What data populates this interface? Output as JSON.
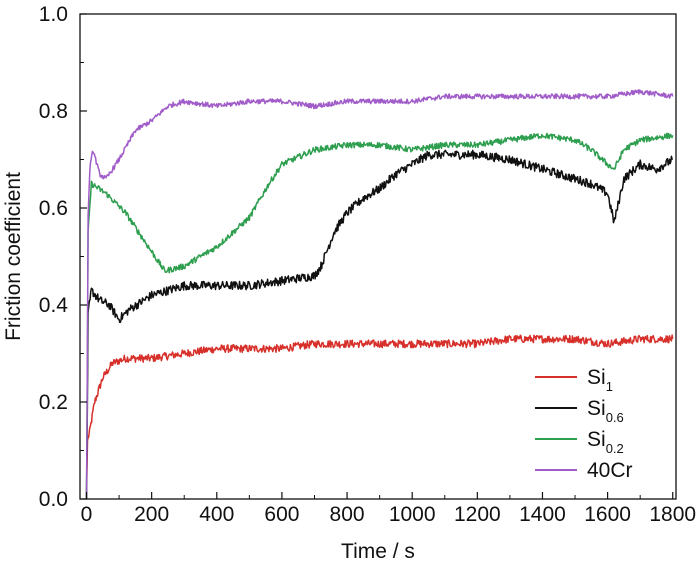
{
  "chart_data": {
    "type": "line",
    "xlabel": "Time / s",
    "ylabel": "Friction coefficient",
    "xlim": [
      -20,
      1810
    ],
    "ylim": [
      0,
      1.0
    ],
    "xticks": [
      0,
      200,
      400,
      600,
      800,
      1000,
      1200,
      1400,
      1600,
      1800
    ],
    "yticks": [
      0.0,
      0.2,
      0.4,
      0.6,
      0.8,
      1.0
    ],
    "ytick_labels": [
      "0.0",
      "0.2",
      "0.4",
      "0.6",
      "0.8",
      "1.0"
    ],
    "legend_position": "bottom-right",
    "series": [
      {
        "name": "Si",
        "sub": "1",
        "color": "#d7302b",
        "noise": 0.008,
        "points": [
          [
            0,
            0.0
          ],
          [
            3,
            0.12
          ],
          [
            10,
            0.14
          ],
          [
            25,
            0.2
          ],
          [
            50,
            0.25
          ],
          [
            80,
            0.28
          ],
          [
            120,
            0.29
          ],
          [
            200,
            0.29
          ],
          [
            300,
            0.3
          ],
          [
            400,
            0.31
          ],
          [
            500,
            0.31
          ],
          [
            600,
            0.31
          ],
          [
            700,
            0.32
          ],
          [
            800,
            0.32
          ],
          [
            900,
            0.32
          ],
          [
            1000,
            0.32
          ],
          [
            1100,
            0.32
          ],
          [
            1200,
            0.32
          ],
          [
            1300,
            0.33
          ],
          [
            1400,
            0.33
          ],
          [
            1500,
            0.33
          ],
          [
            1600,
            0.32
          ],
          [
            1700,
            0.33
          ],
          [
            1800,
            0.33
          ]
        ]
      },
      {
        "name": "Si",
        "sub": "0.6",
        "color": "#111111",
        "noise": 0.009,
        "points": [
          [
            0,
            0.0
          ],
          [
            5,
            0.38
          ],
          [
            15,
            0.43
          ],
          [
            40,
            0.41
          ],
          [
            70,
            0.4
          ],
          [
            100,
            0.37
          ],
          [
            130,
            0.39
          ],
          [
            200,
            0.42
          ],
          [
            300,
            0.44
          ],
          [
            400,
            0.44
          ],
          [
            500,
            0.44
          ],
          [
            600,
            0.45
          ],
          [
            700,
            0.46
          ],
          [
            720,
            0.48
          ],
          [
            760,
            0.55
          ],
          [
            800,
            0.59
          ],
          [
            850,
            0.62
          ],
          [
            900,
            0.64
          ],
          [
            950,
            0.67
          ],
          [
            1000,
            0.69
          ],
          [
            1050,
            0.71
          ],
          [
            1100,
            0.71
          ],
          [
            1200,
            0.71
          ],
          [
            1300,
            0.7
          ],
          [
            1400,
            0.68
          ],
          [
            1500,
            0.66
          ],
          [
            1550,
            0.65
          ],
          [
            1600,
            0.63
          ],
          [
            1620,
            0.57
          ],
          [
            1650,
            0.66
          ],
          [
            1700,
            0.69
          ],
          [
            1750,
            0.68
          ],
          [
            1800,
            0.7
          ]
        ]
      },
      {
        "name": "Si",
        "sub": "0.2",
        "color": "#2e9e4f",
        "noise": 0.006,
        "points": [
          [
            0,
            0.0
          ],
          [
            5,
            0.55
          ],
          [
            15,
            0.65
          ],
          [
            60,
            0.63
          ],
          [
            120,
            0.59
          ],
          [
            180,
            0.53
          ],
          [
            240,
            0.47
          ],
          [
            300,
            0.48
          ],
          [
            400,
            0.52
          ],
          [
            500,
            0.58
          ],
          [
            560,
            0.65
          ],
          [
            600,
            0.69
          ],
          [
            700,
            0.72
          ],
          [
            800,
            0.73
          ],
          [
            900,
            0.73
          ],
          [
            1000,
            0.72
          ],
          [
            1100,
            0.73
          ],
          [
            1200,
            0.73
          ],
          [
            1300,
            0.74
          ],
          [
            1400,
            0.75
          ],
          [
            1500,
            0.74
          ],
          [
            1550,
            0.72
          ],
          [
            1600,
            0.69
          ],
          [
            1620,
            0.68
          ],
          [
            1650,
            0.72
          ],
          [
            1700,
            0.74
          ],
          [
            1800,
            0.75
          ]
        ]
      },
      {
        "name": "40Cr",
        "sub": "",
        "color": "#a05cc8",
        "noise": 0.005,
        "points": [
          [
            0,
            0.0
          ],
          [
            5,
            0.58
          ],
          [
            10,
            0.68
          ],
          [
            20,
            0.72
          ],
          [
            40,
            0.67
          ],
          [
            60,
            0.66
          ],
          [
            100,
            0.7
          ],
          [
            150,
            0.76
          ],
          [
            200,
            0.78
          ],
          [
            250,
            0.81
          ],
          [
            300,
            0.82
          ],
          [
            400,
            0.81
          ],
          [
            500,
            0.82
          ],
          [
            600,
            0.82
          ],
          [
            700,
            0.81
          ],
          [
            800,
            0.82
          ],
          [
            900,
            0.82
          ],
          [
            1000,
            0.82
          ],
          [
            1100,
            0.83
          ],
          [
            1200,
            0.83
          ],
          [
            1300,
            0.83
          ],
          [
            1400,
            0.83
          ],
          [
            1500,
            0.83
          ],
          [
            1600,
            0.83
          ],
          [
            1700,
            0.84
          ],
          [
            1800,
            0.83
          ]
        ]
      }
    ]
  }
}
